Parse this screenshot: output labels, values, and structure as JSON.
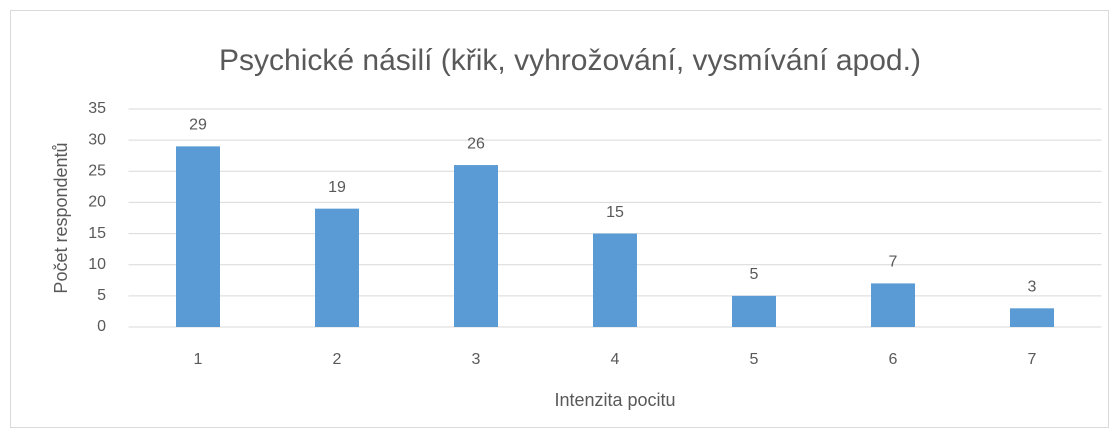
{
  "chart_data": {
    "type": "bar",
    "title": "Psychické násilí (křik, vyhrožování, vysmívání apod.)",
    "x_label": "Intenzita pocitu",
    "y_label": "Počet respondentů",
    "categories": [
      "1",
      "2",
      "3",
      "4",
      "5",
      "6",
      "7"
    ],
    "values": [
      29,
      19,
      26,
      15,
      5,
      7,
      3
    ],
    "color": "#5b9bd5",
    "ylim": [
      0,
      35
    ],
    "yticks": [
      0,
      5,
      10,
      15,
      20,
      25,
      30,
      35
    ],
    "grid": true
  }
}
